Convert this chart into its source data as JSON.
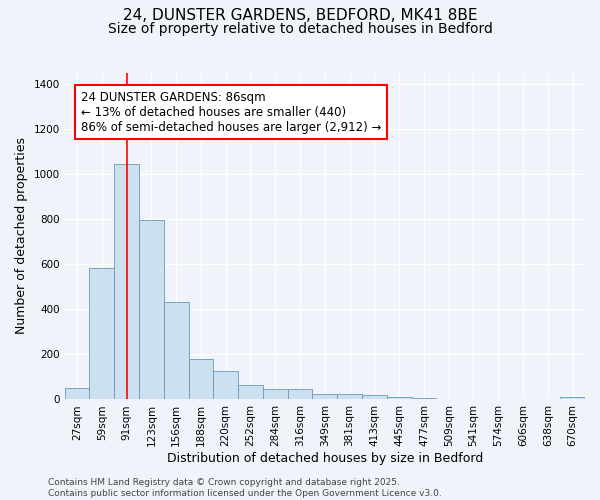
{
  "title1": "24, DUNSTER GARDENS, BEDFORD, MK41 8BE",
  "title2": "Size of property relative to detached houses in Bedford",
  "xlabel": "Distribution of detached houses by size in Bedford",
  "ylabel": "Number of detached properties",
  "bin_labels": [
    "27sqm",
    "59sqm",
    "91sqm",
    "123sqm",
    "156sqm",
    "188sqm",
    "220sqm",
    "252sqm",
    "284sqm",
    "316sqm",
    "349sqm",
    "381sqm",
    "413sqm",
    "445sqm",
    "477sqm",
    "509sqm",
    "541sqm",
    "574sqm",
    "606sqm",
    "638sqm",
    "670sqm"
  ],
  "bar_values": [
    50,
    585,
    1045,
    795,
    430,
    180,
    125,
    65,
    45,
    47,
    25,
    25,
    18,
    12,
    8,
    0,
    0,
    0,
    0,
    0,
    10
  ],
  "bar_color": "#cce0f0",
  "bar_edge_color": "#6699bb",
  "red_line_index": 2,
  "annotation_text": "24 DUNSTER GARDENS: 86sqm\n← 13% of detached houses are smaller (440)\n86% of semi-detached houses are larger (2,912) →",
  "annotation_box_color": "white",
  "annotation_box_edge": "red",
  "ylim": [
    0,
    1450
  ],
  "yticks": [
    0,
    200,
    400,
    600,
    800,
    1000,
    1200,
    1400
  ],
  "footer_text": "Contains HM Land Registry data © Crown copyright and database right 2025.\nContains public sector information licensed under the Open Government Licence v3.0.",
  "background_color": "#f0f4fa",
  "grid_color": "#ffffff",
  "title_fontsize": 11,
  "subtitle_fontsize": 10,
  "ann_fontsize": 8.5,
  "label_fontsize": 9,
  "tick_fontsize": 7.5,
  "footer_fontsize": 6.5
}
